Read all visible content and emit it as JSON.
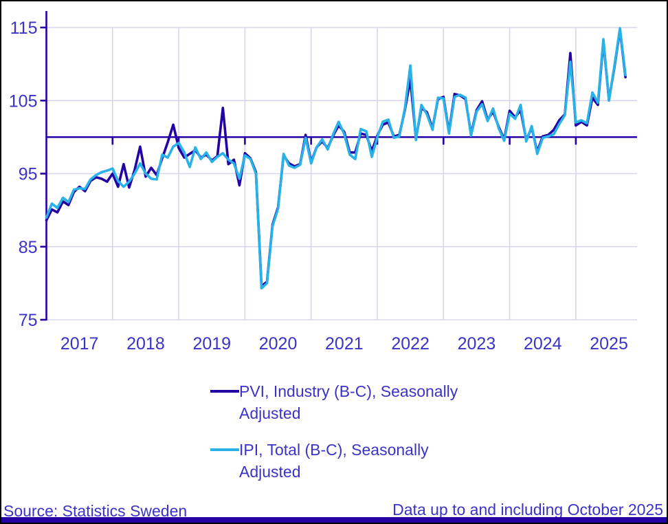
{
  "chart_data": {
    "type": "line",
    "title": "",
    "xlabel": "",
    "ylabel": "",
    "x_unit": "month",
    "x_start": "2017-01",
    "x_end": "2025-10",
    "ylim": [
      75,
      115
    ],
    "yticks": [
      75,
      85,
      95,
      105,
      115
    ],
    "baseline_value": 100,
    "grid": "on",
    "legend_position": "below",
    "year_labels": [
      "2017",
      "2018",
      "2019",
      "2020",
      "2021",
      "2022",
      "2023",
      "2024",
      "2025"
    ],
    "series": [
      {
        "name": "PVI, Industry (B-C), Seasonally Adjusted",
        "color_key": "pvi",
        "values": [
          88.6,
          90.1,
          89.7,
          91.2,
          90.7,
          92.5,
          93.2,
          92.6,
          94.0,
          94.5,
          94.3,
          93.9,
          95.0,
          93.2,
          96.3,
          93.1,
          95.5,
          98.7,
          94.6,
          95.8,
          94.8,
          97.1,
          99.3,
          101.7,
          98.5,
          97.2,
          97.7,
          98.2,
          97.2,
          97.6,
          96.8,
          97.4,
          104.0,
          96.3,
          96.9,
          93.4,
          97.8,
          97.1,
          95.2,
          79.6,
          80.2,
          88.0,
          90.4,
          97.5,
          96.4,
          96.0,
          96.3,
          100.3,
          96.6,
          98.6,
          99.4,
          98.5,
          100.2,
          101.6,
          100.7,
          97.9,
          97.9,
          100.5,
          100.3,
          98.1,
          100.2,
          101.7,
          102.0,
          100.1,
          100.3,
          103.7,
          107.9,
          99.8,
          104.0,
          103.4,
          101.2,
          105.2,
          105.5,
          100.7,
          105.9,
          105.7,
          105.2,
          100.4,
          103.7,
          104.9,
          102.4,
          103.5,
          101.4,
          99.7,
          103.6,
          102.7,
          103.7,
          99.6,
          101.3,
          98.0,
          100.1,
          100.3,
          101.0,
          102.3,
          103.1,
          111.5,
          101.6,
          102.1,
          101.6,
          105.4,
          104.4,
          113.1,
          105.1,
          109.6,
          114.7,
          108.2
        ]
      },
      {
        "name": "IPI, Total (B-C), Seasonally Adjusted",
        "color_key": "ipi",
        "values": [
          89.0,
          90.9,
          90.3,
          91.7,
          91.1,
          92.8,
          93.0,
          92.9,
          94.2,
          94.8,
          95.2,
          95.4,
          95.7,
          94.0,
          93.2,
          93.9,
          95.0,
          96.4,
          95.0,
          94.3,
          94.2,
          97.6,
          97.2,
          98.7,
          99.2,
          97.9,
          95.9,
          98.6,
          97.0,
          97.9,
          96.6,
          97.3,
          97.8,
          96.9,
          96.4,
          94.3,
          97.5,
          97.0,
          95.0,
          79.3,
          80.0,
          87.8,
          90.2,
          97.7,
          96.1,
          95.8,
          96.2,
          99.9,
          96.4,
          98.6,
          99.7,
          98.3,
          100.4,
          102.1,
          100.4,
          97.6,
          97.0,
          101.1,
          100.8,
          97.3,
          100.0,
          102.1,
          102.4,
          99.9,
          100.1,
          103.9,
          109.8,
          99.6,
          104.4,
          103.1,
          101.0,
          105.4,
          105.3,
          100.5,
          105.5,
          105.8,
          105.4,
          100.2,
          103.5,
          104.5,
          102.2,
          103.9,
          101.2,
          99.5,
          103.2,
          102.5,
          104.4,
          99.4,
          101.5,
          97.7,
          99.9,
          100.1,
          100.4,
          101.8,
          103.0,
          110.3,
          102.0,
          102.3,
          101.9,
          106.1,
          104.7,
          113.4,
          105.0,
          109.8,
          114.9,
          108.5
        ]
      }
    ]
  },
  "legend": {
    "entries": [
      {
        "line1": "PVI, Industry (B-C), Seasonally",
        "line2": "Adjusted"
      },
      {
        "line1": "IPI, Total (B-C), Seasonally",
        "line2": "Adjusted"
      }
    ]
  },
  "footer": {
    "source": "Source: Statistics Sweden",
    "note": "Data up to and including October 2025"
  },
  "colors": {
    "pvi": "#2401A3",
    "ipi": "#29B2E8",
    "text": "#3B32C8",
    "grid": "#D8D5EF",
    "axis": "#2401A3",
    "bottom_bar": "#2401A3"
  }
}
